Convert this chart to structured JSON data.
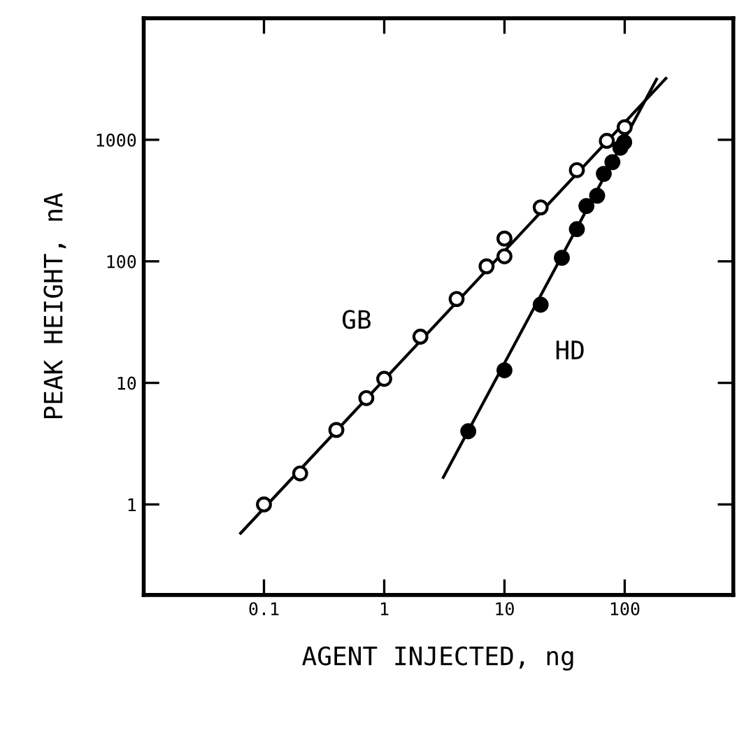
{
  "chart_data": {
    "type": "scatter",
    "xlabel": "AGENT INJECTED, ng",
    "ylabel": "PEAK HEIGHT, nA",
    "log": "xy",
    "grid": false,
    "marker": "circle",
    "xlim": [
      0.01,
      800
    ],
    "ylim": [
      0.18,
      10000
    ],
    "xticks": [
      0.1,
      1,
      10,
      100
    ],
    "yticks": [
      1,
      10,
      100,
      1000
    ],
    "series": [
      {
        "type": "line",
        "color": "#000000",
        "marker": "none",
        "x": [
          0.064,
          220
        ],
        "values": [
          0.58,
          3200
        ]
      },
      {
        "type": "line",
        "color": "#000000",
        "marker": "none",
        "x": [
          3.1,
          184
        ],
        "values": [
          1.67,
          3150
        ]
      },
      {
        "color": "#ffffff",
        "x": [
          0.1,
          0.2,
          0.4,
          0.71,
          1,
          2,
          4,
          7.1,
          10,
          10,
          20,
          40,
          71,
          100
        ],
        "values": [
          1,
          1.8,
          4.1,
          7.5,
          10.8,
          24,
          49,
          91,
          110,
          154,
          278,
          563,
          980,
          1270
        ]
      },
      {
        "color": "#000000",
        "x": [
          5,
          10,
          20,
          30,
          40,
          48,
          59,
          67,
          79,
          92,
          99
        ],
        "values": [
          4,
          12.7,
          44,
          107,
          184,
          285,
          347,
          525,
          655,
          860,
          955
        ]
      }
    ],
    "annotations": [
      "GB",
      "HD"
    ]
  }
}
